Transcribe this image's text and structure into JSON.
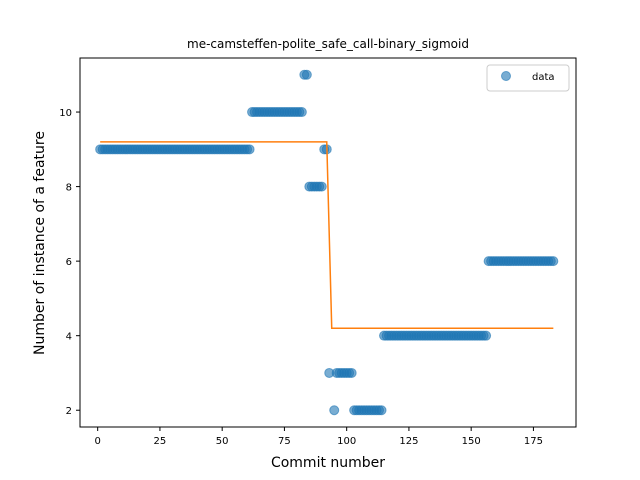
{
  "chart_data": {
    "type": "scatter",
    "title": "me-camsteffen-polite_safe_call-binary_sigmoid",
    "xlabel": "Commit number",
    "ylabel": "Number of instance of a feature",
    "xlim": [
      -7.1,
      192.1
    ],
    "ylim": [
      1.55,
      11.45
    ],
    "xticks": [
      0,
      25,
      50,
      75,
      100,
      125,
      150,
      175
    ],
    "yticks": [
      2,
      4,
      6,
      8,
      10
    ],
    "grid": false,
    "legend": {
      "position": "top-right",
      "entries": [
        {
          "label": "data",
          "marker": "circle"
        }
      ]
    },
    "series": [
      {
        "name": "data",
        "kind": "scatter",
        "color": "#1f77b4",
        "segments": [
          {
            "x_start": 1,
            "x_end": 61,
            "y": 9
          },
          {
            "x_start": 62,
            "x_end": 82,
            "y": 10
          },
          {
            "x_start": 83,
            "x_end": 84,
            "y": 11
          },
          {
            "x_start": 85,
            "x_end": 90,
            "y": 8
          },
          {
            "x_start": 91,
            "x_end": 92,
            "y": 9
          },
          {
            "x_start": 93,
            "x_end": 93,
            "y": 3
          },
          {
            "x_start": 95,
            "x_end": 95,
            "y": 2
          },
          {
            "x_start": 96,
            "x_end": 102,
            "y": 3
          },
          {
            "x_start": 103,
            "x_end": 114,
            "y": 2
          },
          {
            "x_start": 115,
            "x_end": 156,
            "y": 4
          },
          {
            "x_start": 157,
            "x_end": 183,
            "y": 6
          }
        ]
      },
      {
        "name": "fit",
        "kind": "line",
        "color": "#ff7f0e",
        "points": [
          [
            1,
            9.2
          ],
          [
            92,
            9.2
          ],
          [
            94,
            4.2
          ],
          [
            183,
            4.2
          ]
        ]
      }
    ]
  }
}
